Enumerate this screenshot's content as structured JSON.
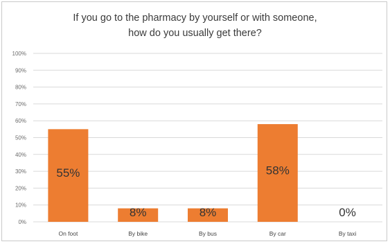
{
  "chart_data": {
    "type": "bar",
    "title_lines": [
      "If you go to the pharmacy by yourself or with someone,",
      "how do you usually get there?"
    ],
    "categories": [
      "On foot",
      "By bike",
      "By bus",
      "By car",
      "By taxi"
    ],
    "values": [
      55,
      8,
      8,
      58,
      0
    ],
    "data_labels": [
      "55%",
      "8%",
      "8%",
      "58%",
      "0%"
    ],
    "ylim": [
      0,
      100
    ],
    "y_ticks": [
      0,
      10,
      20,
      30,
      40,
      50,
      60,
      70,
      80,
      90,
      100
    ],
    "y_tick_labels": [
      "0%",
      "10%",
      "20%",
      "30%",
      "40%",
      "50%",
      "60%",
      "70%",
      "80%",
      "90%",
      "100%"
    ],
    "xlabel": "",
    "ylabel": "",
    "grid": true,
    "legend": "none",
    "bar_color": "#ED7D31",
    "grid_color": "#d9d9d9"
  }
}
